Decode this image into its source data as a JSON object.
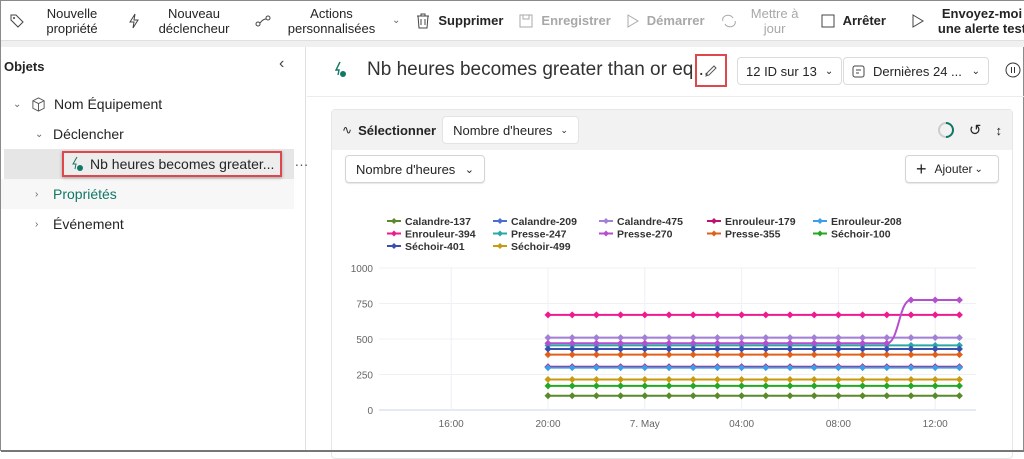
{
  "toolbar": {
    "new_property": "Nouvelle propriété",
    "new_trigger": "Nouveau déclencheur",
    "custom_actions": "Actions personnalisées",
    "delete": "Supprimer",
    "save": "Enregistrer",
    "start": "Démarrer",
    "update": "Mettre à jour",
    "stop": "Arrêter",
    "test_alert": "Envoyez-moi une alerte test"
  },
  "sidebar": {
    "title": "Objets",
    "items": [
      {
        "label": "Nom Équipement",
        "icon": "cube-icon"
      },
      {
        "label": "Déclencher"
      },
      {
        "label": "Nb heures becomes greater...",
        "icon": "trigger-icon",
        "selected": true
      },
      {
        "label": "Propriétés"
      },
      {
        "label": "Événement"
      }
    ]
  },
  "header": {
    "title": "Nb heures becomes greater than or eq...",
    "id_filter": "12 ID sur 13",
    "time_range": "Dernières 24 ..."
  },
  "card": {
    "select_label": "Sélectionner",
    "select_value": "Nombre d'heures",
    "measure_dropdown": "Nombre d'heures",
    "add_button": "Ajouter"
  },
  "chart_data": {
    "type": "line",
    "x": [
      "20:00",
      "21:00",
      "22:00",
      "23:00",
      "00:00",
      "01:00",
      "02:00",
      "03:00",
      "04:00",
      "05:00",
      "06:00",
      "07:00",
      "08:00",
      "09:00",
      "10:00",
      "11:00",
      "12:00",
      "13:00"
    ],
    "x_ticks": [
      "16:00",
      "20:00",
      "7. May",
      "04:00",
      "08:00",
      "12:00"
    ],
    "y_ticks": [
      "0",
      "250",
      "500",
      "750",
      "1000"
    ],
    "ylim": [
      0,
      1000
    ],
    "grid": true,
    "legend_placement": "top-left",
    "series": [
      {
        "name": "Calandre-137",
        "color": "#5a8a2a",
        "values": [
          100,
          100,
          100,
          100,
          100,
          100,
          100,
          100,
          100,
          100,
          100,
          100,
          100,
          100,
          100,
          100,
          100,
          100
        ]
      },
      {
        "name": "Calandre-209",
        "color": "#4a6fd0",
        "values": [
          300,
          300,
          300,
          300,
          300,
          300,
          300,
          300,
          300,
          300,
          300,
          300,
          300,
          300,
          300,
          300,
          300,
          300
        ]
      },
      {
        "name": "Calandre-475",
        "color": "#a47fd6",
        "values": [
          510,
          510,
          510,
          510,
          510,
          510,
          510,
          510,
          510,
          510,
          510,
          510,
          510,
          510,
          510,
          510,
          510,
          510
        ]
      },
      {
        "name": "Enrouleur-179",
        "color": "#c0106e",
        "values": [
          305,
          305,
          305,
          305,
          305,
          305,
          305,
          305,
          305,
          305,
          305,
          305,
          305,
          305,
          305,
          305,
          305,
          305
        ]
      },
      {
        "name": "Enrouleur-208",
        "color": "#3c9ee8",
        "values": [
          298,
          298,
          298,
          298,
          298,
          298,
          298,
          298,
          298,
          298,
          298,
          298,
          298,
          298,
          298,
          298,
          298,
          298
        ]
      },
      {
        "name": "Enrouleur-394",
        "color": "#ee1a8f",
        "values": [
          670,
          670,
          670,
          670,
          670,
          670,
          670,
          670,
          670,
          670,
          670,
          670,
          670,
          670,
          670,
          670,
          670,
          670
        ]
      },
      {
        "name": "Presse-247",
        "color": "#2aa8a8",
        "values": [
          455,
          455,
          455,
          455,
          455,
          455,
          455,
          455,
          455,
          455,
          455,
          455,
          455,
          455,
          455,
          455,
          455,
          455
        ]
      },
      {
        "name": "Presse-270",
        "color": "#b44fd0",
        "values": [
          470,
          470,
          470,
          470,
          470,
          470,
          470,
          470,
          470,
          470,
          470,
          470,
          470,
          470,
          470,
          775,
          775,
          775
        ]
      },
      {
        "name": "Presse-355",
        "color": "#e0601a",
        "values": [
          390,
          390,
          390,
          390,
          390,
          390,
          390,
          390,
          390,
          390,
          390,
          390,
          390,
          390,
          390,
          390,
          390,
          390
        ]
      },
      {
        "name": "Séchoir-100",
        "color": "#22a822",
        "values": [
          170,
          170,
          170,
          170,
          170,
          170,
          170,
          170,
          170,
          170,
          170,
          170,
          170,
          170,
          170,
          170,
          170,
          170
        ]
      },
      {
        "name": "Séchoir-401",
        "color": "#3a4fb0",
        "values": [
          430,
          430,
          430,
          430,
          430,
          430,
          430,
          430,
          430,
          430,
          430,
          430,
          430,
          430,
          430,
          430,
          430,
          430
        ]
      },
      {
        "name": "Séchoir-499",
        "color": "#c89a10",
        "values": [
          215,
          215,
          215,
          215,
          215,
          215,
          215,
          215,
          215,
          215,
          215,
          215,
          215,
          215,
          215,
          215,
          215,
          215
        ]
      }
    ]
  }
}
